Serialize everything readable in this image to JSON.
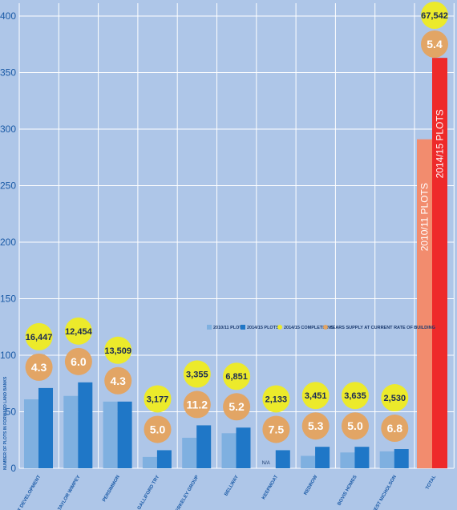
{
  "chart_data": {
    "type": "bar",
    "ylabel": "NUMBER OF PLOTS IN FORWARD LAND BANKS",
    "ylim": [
      0,
      400
    ],
    "yticks": [
      "0",
      "50",
      "100",
      "150",
      "200",
      "250",
      "300",
      "350",
      "400"
    ],
    "grid": true,
    "legend_placement": "middle-right",
    "categories": [
      "BARRATT DEVELOPMENT",
      "TAYLOR WIMPEY",
      "PERSIMMON",
      "GALLIFORD TRY",
      "BERKELEY GROUP",
      "BELLWAY",
      "KEEPMOAT",
      "REDROW",
      "BOVIS HOMES",
      "CREST NICHOLSON",
      "TOTAL"
    ],
    "series": [
      {
        "name": "2010/11 PLOTS",
        "color": "#7fb0e0",
        "total_color": "#f28c6e",
        "values": [
          61,
          64,
          59,
          10,
          27,
          31,
          null,
          11,
          14,
          15,
          291
        ]
      },
      {
        "name": "2014/15 PLOTS",
        "color": "#1f77c7",
        "total_color": "#ee2a2a",
        "values": [
          71,
          76,
          59,
          16,
          38,
          36,
          16,
          19,
          19,
          17,
          363
        ]
      }
    ],
    "completions": {
      "name": "2014/15 COMPLETIONS",
      "color": "#ecea2b",
      "labels": [
        "16,447",
        "12,454",
        "13,509",
        "3,177",
        "3,355",
        "6,851",
        "2,133",
        "3,451",
        "3,635",
        "2,530",
        "67,542"
      ]
    },
    "years_supply": {
      "name": "YEARS SUPPLY AT CURRENT RATE OF BUILDING",
      "color": "#e2a565",
      "labels": [
        "4.3",
        "6.0",
        "4.3",
        "5.0",
        "11.2",
        "5.2",
        "7.5",
        "5.3",
        "5.0",
        "6.8",
        "5.4"
      ]
    },
    "na_label": "N/A",
    "total_bar_labels": [
      "2010/11 PLOTS",
      "2014/15 PLOTS"
    ],
    "colors": {
      "background": "#aec6e8",
      "grid": "#ffffff",
      "axis_text": "#1a5aa6"
    }
  }
}
